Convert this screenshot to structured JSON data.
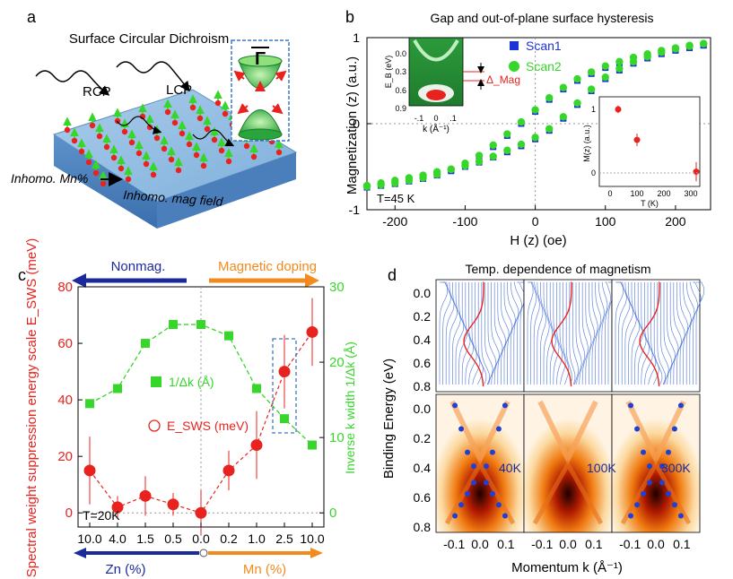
{
  "colors": {
    "red": "#e8231f",
    "green": "#37d62a",
    "blue": "#1a34d8",
    "orange": "#f28a1e",
    "navy": "#1b2a9a",
    "slab_top": "#9bc1e4",
    "slab_front": "#6f9fd0",
    "cone_green": "#2aa43c"
  },
  "panel_a": {
    "label": "a",
    "title": "Surface Circular Dichroism",
    "rcp": "RCP",
    "lcp": "LCP",
    "bottom_left": "Inhomo. Mn%",
    "bottom_right": "Inhomo. mag field",
    "gamma": "Γ"
  },
  "panel_b": {
    "label": "b",
    "inset_temp": "T=45 K",
    "chart_data": {
      "type": "scatter",
      "title": "Gap and out-of-plane surface hysteresis",
      "xlabel": "H (z) (oe)",
      "ylabel": "Magnetization (z) (a.u.)",
      "xlim": [
        -240,
        250
      ],
      "ylim": [
        -1,
        1
      ],
      "xticks": [
        "-200",
        "-100",
        "0",
        "100",
        "200"
      ],
      "yticks": [
        "1",
        "0",
        "-1"
      ],
      "legend": [
        "Scan1",
        "Scan2"
      ],
      "series": [
        {
          "name": "Scan1 (ascending)",
          "x": [
            -240,
            -220,
            -200,
            -180,
            -160,
            -140,
            -120,
            -100,
            -80,
            -60,
            -40,
            -20,
            0,
            20,
            40,
            60,
            80,
            100,
            120,
            140,
            160,
            180,
            200,
            220,
            240
          ],
          "y": [
            -0.74,
            -0.71,
            -0.68,
            -0.65,
            -0.62,
            -0.58,
            -0.54,
            -0.5,
            -0.45,
            -0.39,
            -0.33,
            -0.26,
            -0.18,
            -0.08,
            0.06,
            0.22,
            0.38,
            0.52,
            0.62,
            0.7,
            0.76,
            0.81,
            0.85,
            0.88,
            0.91
          ]
        },
        {
          "name": "Scan1 (descending)",
          "x": [
            240,
            220,
            200,
            180,
            160,
            140,
            120,
            100,
            80,
            60,
            40,
            20,
            0,
            -20,
            -40,
            -60,
            -80,
            -100,
            -120,
            -140,
            -160,
            -180,
            -200,
            -220,
            -240
          ],
          "y": [
            0.91,
            0.89,
            0.86,
            0.83,
            0.79,
            0.75,
            0.7,
            0.65,
            0.58,
            0.5,
            0.4,
            0.28,
            0.14,
            0.0,
            -0.14,
            -0.27,
            -0.39,
            -0.48,
            -0.55,
            -0.6,
            -0.64,
            -0.67,
            -0.7,
            -0.72,
            -0.74
          ]
        },
        {
          "name": "Scan2 (ascending)",
          "x": [
            -240,
            -220,
            -200,
            -180,
            -160,
            -140,
            -120,
            -100,
            -80,
            -60,
            -40,
            -20,
            0,
            20,
            40,
            60,
            80,
            100,
            120,
            140,
            160,
            180,
            200,
            220,
            240
          ],
          "y": [
            -0.72,
            -0.69,
            -0.66,
            -0.63,
            -0.6,
            -0.56,
            -0.53,
            -0.49,
            -0.44,
            -0.38,
            -0.31,
            -0.24,
            -0.16,
            -0.06,
            0.08,
            0.24,
            0.4,
            0.54,
            0.64,
            0.72,
            0.78,
            0.83,
            0.87,
            0.9,
            0.93
          ]
        },
        {
          "name": "Scan2 (descending)",
          "x": [
            240,
            220,
            200,
            180,
            160,
            140,
            120,
            100,
            80,
            60,
            40,
            20,
            0,
            -20,
            -40,
            -60,
            -80,
            -100,
            -120,
            -140,
            -160,
            -180,
            -200,
            -220,
            -240
          ],
          "y": [
            0.93,
            0.91,
            0.88,
            0.85,
            0.81,
            0.77,
            0.72,
            0.67,
            0.6,
            0.52,
            0.42,
            0.3,
            0.16,
            0.02,
            -0.12,
            -0.25,
            -0.37,
            -0.46,
            -0.53,
            -0.59,
            -0.63,
            -0.66,
            -0.69,
            -0.71,
            -0.73
          ]
        }
      ]
    },
    "arpes_inset": {
      "ylabel": "E_B (eV)",
      "yticks": [
        "0.0",
        "0.3",
        "0.6",
        "0.9"
      ],
      "xticks": [
        "-.1",
        "0",
        ".1"
      ],
      "xlabel": "k (Å⁻¹)",
      "gap_label": "Δ_Mag"
    },
    "temp_inset": {
      "type": "scatter",
      "xlabel": "T (K)",
      "ylabel": "M(z) (a.u.)",
      "xticks": [
        "0",
        "100",
        "200",
        "300"
      ],
      "yticks": [
        "1",
        "0"
      ],
      "x": [
        30,
        100,
        320
      ],
      "y": [
        1.0,
        0.52,
        0.02
      ],
      "yerr": [
        0.06,
        0.1,
        0.15
      ]
    }
  },
  "panel_c": {
    "label": "c",
    "arrow_left": "Nonmag.",
    "arrow_right": "Magnetic doping",
    "legend_green": "1/Δk (Å)",
    "legend_red": "E_SWS (meV)",
    "temp": "T=20K",
    "zn_label": "Zn (%)",
    "mn_label": "Mn (%)",
    "chart_data": {
      "type": "line",
      "categories": [
        "10.0",
        "4.0",
        "1.5",
        "0.5",
        "0.0",
        "0.2",
        "1.0",
        "2.5",
        "10.0"
      ],
      "ylabel_left": "Spectral weight suppression energy scale E_SWS (meV)",
      "ylabel_right": "Inverse k width 1/Δk (Å)",
      "ylim_left": [
        -5,
        80
      ],
      "ylim_right": [
        -1.875,
        30
      ],
      "yticks_left": [
        "0",
        "20",
        "40",
        "60",
        "80"
      ],
      "yticks_right": [
        "0",
        "10",
        "20",
        "30"
      ],
      "series": [
        {
          "name": "E_SWS (meV)",
          "axis": "left",
          "values": [
            15,
            2,
            6,
            3,
            0,
            15,
            24,
            50,
            64
          ],
          "yerr": [
            12,
            4,
            7,
            4,
            8,
            7,
            12,
            13,
            12
          ]
        },
        {
          "name": "1/Δk (Å)",
          "axis": "right",
          "values": [
            14.5,
            16.5,
            22.5,
            25,
            25,
            23.5,
            16.5,
            12.5,
            9
          ]
        }
      ]
    }
  },
  "panel_d": {
    "label": "d",
    "title": "Temp. dependence of magnetism",
    "ylabel": "Binding Energy (eV)",
    "xlabel": "Momentum k (Å⁻¹)",
    "yticks_top": [
      "0.0",
      "0.2",
      "0.4",
      "0.6",
      "0.8"
    ],
    "yticks_bottom": [
      "0.0",
      "0.2",
      "0.4",
      "0.6",
      "0.8"
    ],
    "xticks": [
      "-0.1",
      "0.0",
      "0.1"
    ],
    "temps": [
      "40K",
      "100K",
      "300K"
    ]
  }
}
